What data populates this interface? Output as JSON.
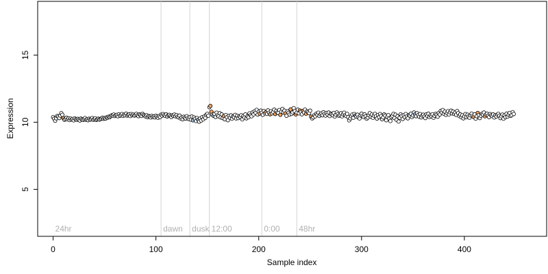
{
  "chart_data": {
    "type": "scatter",
    "title": "",
    "xlabel": "Sample index",
    "ylabel": "Expression",
    "xlim": [
      -15,
      480
    ],
    "ylim": [
      1.5,
      19.0
    ],
    "xticks": [
      0,
      100,
      200,
      300,
      400
    ],
    "yticks": [
      5,
      10,
      15
    ],
    "grid": false,
    "legend": "none",
    "vlines": [
      {
        "x": 105,
        "label": "dawn"
      },
      {
        "x": 133,
        "label": "dusk"
      },
      {
        "x": 152,
        "label": "12:00"
      },
      {
        "x": 203,
        "label": "0:00"
      },
      {
        "x": 237,
        "label": "48hr"
      }
    ],
    "corner_label": "24hr",
    "colors": {
      "vline": "#d3d3d3",
      "annotation_text": "#b0b0b0",
      "point_stroke": "#000000",
      "point_fill_default": "#ffffff",
      "point_fill_orange": "#f4a460",
      "point_fill_blue": "#9bb7d4"
    },
    "n_points": 462,
    "points_y": [
      10.38,
      10.26,
      10.11,
      10.29,
      10.46,
      10.41,
      10.31,
      10.49,
      10.68,
      10.55,
      10.31,
      10.18,
      10.24,
      10.33,
      10.21,
      10.28,
      10.16,
      10.27,
      10.19,
      10.24,
      10.14,
      10.29,
      10.22,
      10.18,
      10.25,
      10.19,
      10.13,
      10.27,
      10.21,
      10.17,
      10.24,
      10.31,
      10.18,
      10.22,
      10.15,
      10.26,
      10.19,
      10.23,
      10.31,
      10.18,
      10.24,
      10.29,
      10.17,
      10.21,
      10.26,
      10.19,
      10.23,
      10.28,
      10.33,
      10.25,
      10.31,
      10.27,
      10.36,
      10.34,
      10.41,
      10.38,
      10.45,
      10.52,
      10.49,
      10.57,
      10.46,
      10.51,
      10.55,
      10.44,
      10.59,
      10.48,
      10.53,
      10.61,
      10.47,
      10.56,
      10.51,
      10.63,
      10.49,
      10.55,
      10.58,
      10.46,
      10.61,
      10.52,
      10.57,
      10.49,
      10.54,
      10.62,
      10.51,
      10.45,
      10.58,
      10.53,
      10.47,
      10.62,
      10.55,
      10.49,
      10.43,
      10.51,
      10.38,
      10.46,
      10.42,
      10.35,
      10.47,
      10.39,
      10.44,
      10.36,
      10.48,
      10.41,
      10.33,
      10.45,
      10.38,
      10.56,
      10.49,
      10.61,
      10.52,
      10.47,
      10.58,
      10.43,
      10.51,
      10.55,
      10.46,
      10.39,
      10.52,
      10.48,
      10.57,
      10.44,
      10.53,
      10.41,
      10.36,
      10.49,
      10.28,
      10.35,
      10.22,
      10.41,
      10.33,
      10.27,
      10.45,
      10.31,
      10.24,
      10.38,
      10.19,
      10.42,
      10.14,
      10.36,
      10.25,
      10.09,
      10.31,
      10.18,
      10.04,
      10.27,
      10.12,
      10.38,
      10.21,
      10.42,
      10.32,
      10.55,
      10.62,
      10.48,
      11.12,
      11.21,
      10.78,
      10.56,
      10.48,
      10.62,
      10.39,
      10.71,
      10.52,
      10.44,
      10.67,
      10.36,
      10.58,
      10.31,
      10.46,
      10.22,
      10.54,
      10.38,
      10.15,
      10.47,
      10.33,
      10.51,
      10.26,
      10.42,
      10.37,
      10.55,
      10.28,
      10.48,
      10.31,
      10.44,
      10.39,
      10.52,
      10.21,
      10.46,
      10.35,
      10.58,
      10.29,
      10.43,
      10.37,
      10.66,
      10.52,
      10.44,
      10.72,
      10.58,
      10.81,
      10.69,
      10.92,
      10.57,
      10.78,
      10.64,
      10.86,
      10.71,
      10.55,
      10.83,
      10.67,
      10.74,
      10.62,
      10.88,
      10.71,
      10.59,
      10.82,
      10.66,
      10.76,
      10.93,
      10.61,
      10.84,
      10.72,
      10.68,
      10.91,
      10.55,
      10.79,
      10.99,
      10.73,
      10.86,
      10.66,
      10.48,
      10.81,
      10.69,
      10.57,
      10.95,
      10.62,
      10.74,
      11.05,
      10.82,
      10.58,
      10.71,
      10.93,
      10.66,
      10.87,
      10.77,
      10.59,
      10.84,
      10.72,
      10.94,
      10.63,
      10.81,
      10.75,
      10.68,
      10.86,
      10.41,
      10.28,
      10.36,
      10.52,
      10.44,
      10.63,
      10.55,
      10.71,
      10.47,
      10.59,
      10.66,
      10.52,
      10.74,
      10.61,
      10.49,
      10.68,
      10.57,
      10.72,
      10.46,
      10.63,
      10.58,
      10.51,
      10.69,
      10.42,
      10.56,
      10.73,
      10.61,
      10.48,
      10.55,
      10.67,
      10.44,
      10.59,
      10.71,
      10.53,
      10.46,
      10.62,
      10.38,
      10.14,
      10.29,
      10.45,
      10.57,
      10.33,
      10.61,
      10.49,
      10.42,
      10.56,
      10.36,
      10.28,
      10.51,
      10.63,
      10.47,
      10.39,
      10.58,
      10.44,
      10.26,
      10.35,
      10.52,
      10.68,
      10.41,
      10.57,
      10.33,
      10.49,
      10.62,
      10.45,
      10.27,
      10.54,
      10.38,
      10.61,
      10.46,
      10.22,
      10.36,
      10.58,
      10.49,
      10.15,
      10.41,
      10.53,
      10.27,
      10.09,
      10.38,
      10.47,
      10.62,
      10.31,
      10.56,
      10.18,
      10.44,
      10.05,
      10.33,
      10.59,
      10.46,
      10.24,
      10.52,
      10.38,
      10.61,
      10.43,
      10.29,
      10.54,
      10.47,
      10.63,
      10.39,
      10.51,
      10.72,
      10.58,
      10.45,
      10.67,
      10.53,
      10.41,
      10.61,
      10.36,
      10.49,
      10.56,
      10.42,
      10.31,
      10.58,
      10.47,
      10.63,
      10.39,
      10.52,
      10.44,
      10.59,
      10.33,
      10.48,
      10.62,
      10.55,
      10.41,
      10.68,
      10.57,
      10.84,
      10.72,
      10.91,
      10.63,
      10.78,
      10.55,
      10.69,
      10.82,
      10.58,
      10.74,
      10.86,
      10.66,
      10.79,
      10.62,
      10.71,
      10.55,
      10.83,
      10.68,
      10.46,
      10.58,
      10.37,
      10.52,
      10.29,
      10.44,
      10.61,
      10.38,
      10.56,
      10.42,
      10.33,
      10.51,
      10.64,
      10.47,
      10.39,
      10.58,
      10.26,
      10.45,
      10.69,
      10.53,
      10.31,
      10.48,
      10.62,
      10.56,
      10.72,
      10.44,
      10.57,
      10.63,
      10.49,
      10.38,
      10.61,
      10.52,
      10.46,
      10.58,
      10.35,
      10.51,
      10.43,
      10.56,
      10.62,
      10.48,
      10.31,
      10.44,
      10.57,
      10.26,
      10.51,
      10.38,
      10.63,
      10.42,
      10.55,
      10.69,
      10.47,
      10.53,
      10.75,
      10.61
    ],
    "orange_indices": [
      10,
      153,
      154,
      166,
      201,
      207,
      211,
      216,
      221,
      226,
      231,
      236,
      240,
      243,
      246,
      251,
      409,
      413,
      420
    ],
    "blue_indices": [
      136,
      141,
      156,
      294,
      346,
      352
    ]
  }
}
